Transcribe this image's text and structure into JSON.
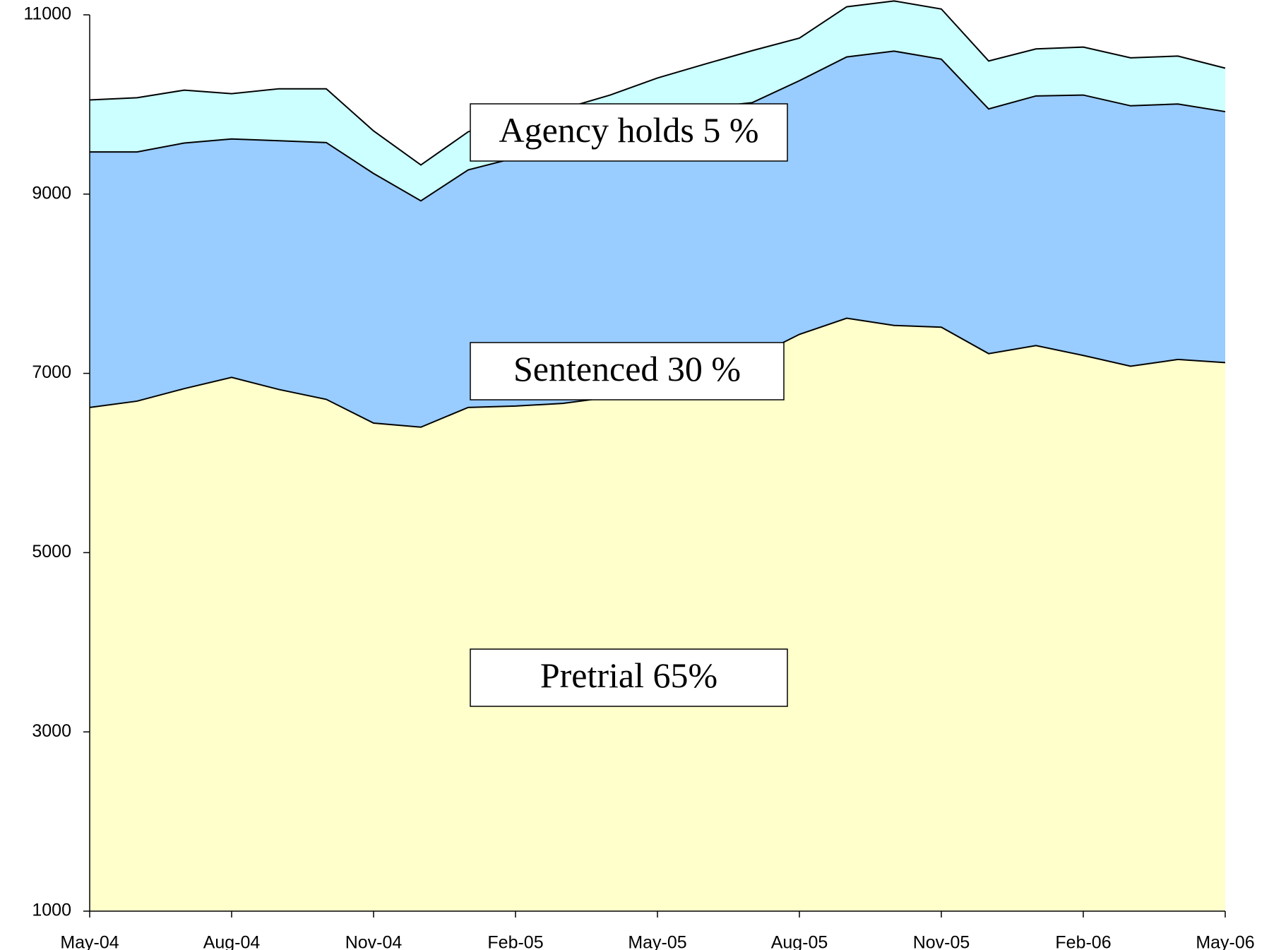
{
  "chart_data": {
    "type": "stacked_area",
    "categories": [
      "May-04",
      null,
      null,
      "Aug-04",
      null,
      null,
      "Nov-04",
      null,
      null,
      "Feb-05",
      null,
      null,
      "May-05",
      null,
      null,
      "Aug-05",
      null,
      null,
      "Nov-05",
      null,
      null,
      "Feb-06",
      null,
      null,
      "May-06"
    ],
    "series": [
      {
        "name": "Pretrial",
        "color": "#ffffcc",
        "values": [
          5620,
          5690,
          5830,
          5955,
          5820,
          5710,
          5445,
          5400,
          5620,
          5635,
          5665,
          5735,
          5870,
          6120,
          6170,
          6435,
          6615,
          6535,
          6515,
          6220,
          6310,
          6200,
          6080,
          6155,
          6120
        ]
      },
      {
        "name": "Sentenced",
        "color": "#99ccff",
        "values": [
          2850,
          2780,
          2740,
          2660,
          2775,
          2865,
          2785,
          2525,
          2650,
          2770,
          2810,
          2895,
          2880,
          2845,
          2850,
          2830,
          2915,
          3060,
          2990,
          2730,
          2785,
          2905,
          2905,
          2850,
          2800
        ]
      },
      {
        "name": "Agency holds",
        "color": "#ccffff",
        "values": [
          580,
          605,
          590,
          505,
          580,
          600,
          475,
          400,
          425,
          465,
          475,
          475,
          545,
          485,
          580,
          475,
          560,
          560,
          560,
          535,
          525,
          535,
          535,
          535,
          485
        ]
      }
    ],
    "annotations": [
      "Agency holds 5 %",
      "Sentenced  30 %",
      "Pretrial  65%"
    ],
    "ylim": [
      1000,
      11000
    ],
    "yticks": [
      1000,
      3000,
      5000,
      7000,
      9000,
      11000
    ],
    "grid": false
  }
}
